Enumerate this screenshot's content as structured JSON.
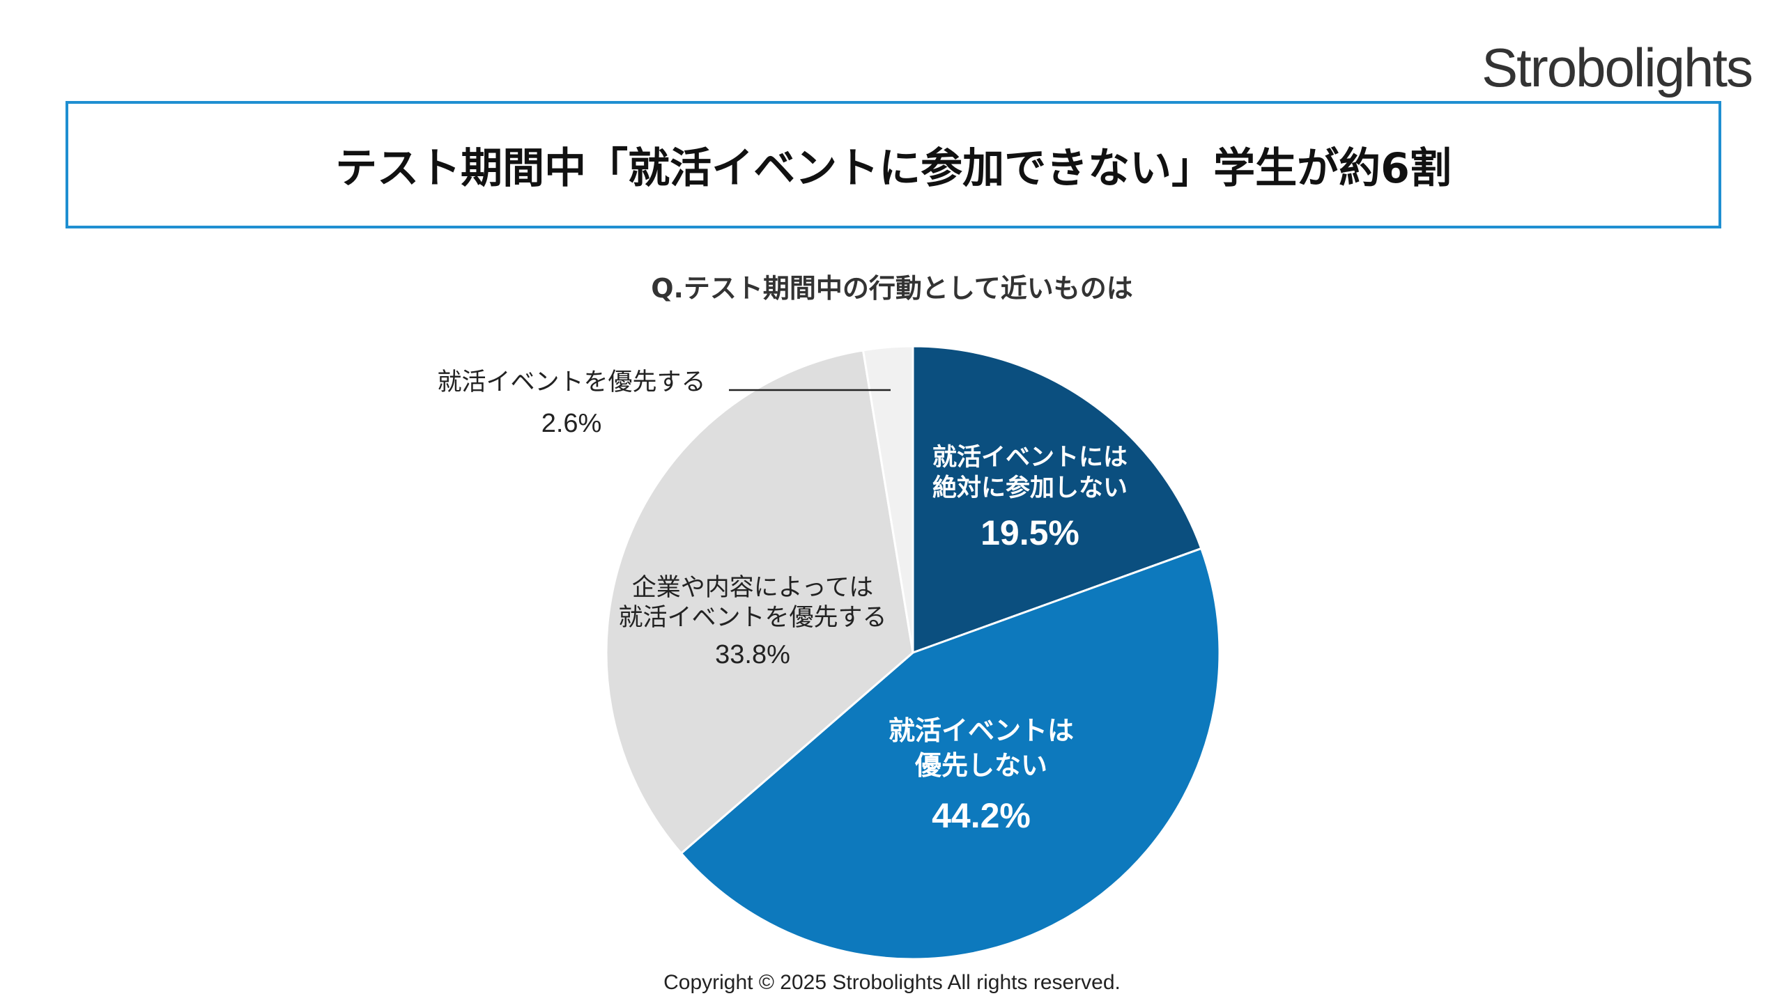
{
  "brand": {
    "logo_text": "Strobolights"
  },
  "header": {
    "title": "テスト期間中「就活イベントに参加できない」学生が約6割"
  },
  "footer": {
    "copyright": "Copyright © 2025 Strobolights All rights reserved."
  },
  "chart_data": {
    "type": "pie",
    "title": "Q.テスト期間中の行動として近いものは",
    "start": "12 o'clock",
    "direction": "clockwise",
    "slices": [
      {
        "label_lines": [
          "就活イベントには",
          "絶対に参加しない"
        ],
        "value": 19.5,
        "value_label": "19.5%",
        "color": "#0b4f7f"
      },
      {
        "label_lines": [
          "就活イベントは",
          "優先しない"
        ],
        "value": 44.2,
        "value_label": "44.2%",
        "color": "#0d79bd"
      },
      {
        "label_lines": [
          "企業や内容によっては",
          "就活イベントを優先する"
        ],
        "value": 33.8,
        "value_label": "33.8%",
        "color": "#dedede"
      },
      {
        "label_lines": [
          "就活イベントを優先する"
        ],
        "value": 2.6,
        "value_label": "2.6%",
        "color": "#f1f1f1"
      }
    ]
  }
}
